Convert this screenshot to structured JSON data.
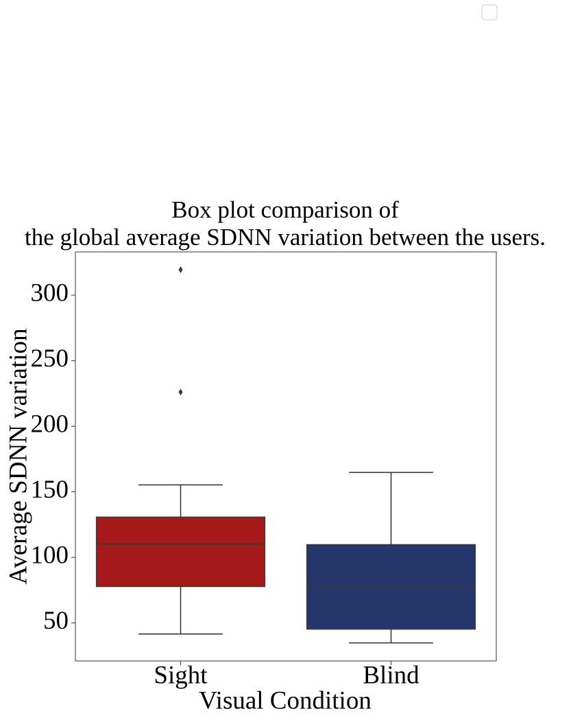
{
  "chart_data": {
    "type": "box",
    "title": [
      "Box plot comparison of",
      "the global average SDNN variation between the users."
    ],
    "x_label": "Visual Condition",
    "y_label": "Average SDNN variation",
    "categories": [
      "Sight",
      "Blind"
    ],
    "colors": [
      "#a6191a",
      "#24366b"
    ],
    "boxes": [
      {
        "whislo": 41.6,
        "q1": 77.8,
        "med": 110.3,
        "q3": 130.7,
        "whishi": 155.3,
        "fliers": [
          319.4,
          226.1
        ]
      },
      {
        "whislo": 34.8,
        "q1": 45.3,
        "med": 77.8,
        "q3": 109.7,
        "whishi": 164.8,
        "fliers": []
      }
    ],
    "ylim": [
      21,
      333
    ],
    "yticks": [
      50,
      100,
      150,
      200,
      250,
      300
    ]
  }
}
